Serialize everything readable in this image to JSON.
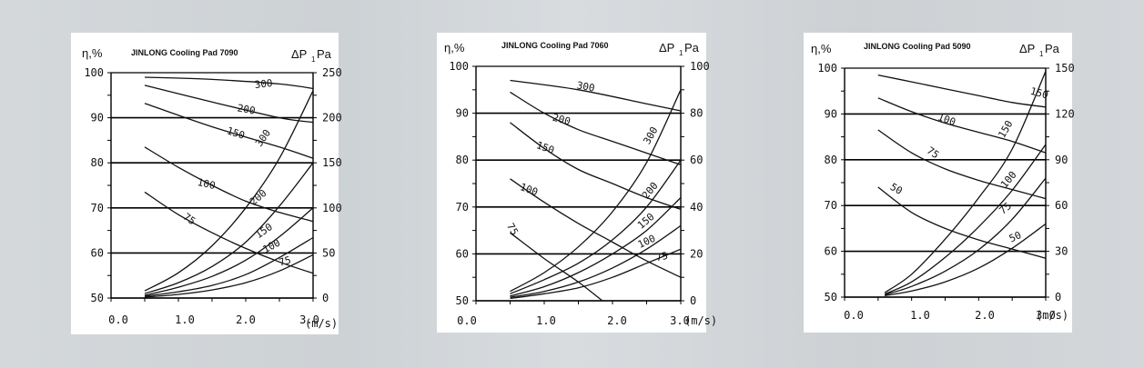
{
  "background_color": "#d2d6d9",
  "charts": [
    {
      "title": "JINLONG  Cooling Pad 7090",
      "left_label": "η,%",
      "right_label": "ΔP",
      "right_label_sub": "1",
      "right_label_unit": "Pa",
      "x_label": "(m/s)",
      "x_ticks": [
        "0.0",
        "1.0",
        "2.0",
        "3.0"
      ],
      "y_left_ticks": [
        "50",
        "60",
        "70",
        "80",
        "90",
        "100"
      ],
      "y_right_ticks": [
        "0",
        "50",
        "100",
        "150",
        "200",
        "250"
      ]
    },
    {
      "title": "JINLONG  Cooling Pad 7060",
      "left_label": "η,%",
      "right_label": "ΔP",
      "right_label_sub": "1",
      "right_label_unit": "Pa",
      "x_label": "(m/s)",
      "x_ticks": [
        "0.0",
        "1.0",
        "2.0",
        "3.0"
      ],
      "y_left_ticks": [
        "50",
        "60",
        "70",
        "80",
        "90",
        "100"
      ],
      "y_right_ticks": [
        "0",
        "20",
        "40",
        "60",
        "80",
        "100"
      ]
    },
    {
      "title": "JINLONG  Cooling Pad 5090",
      "left_label": "η,%",
      "right_label": "ΔP",
      "right_label_sub": "1",
      "right_label_unit": "Pa",
      "x_label": "(m/s)",
      "x_ticks": [
        "0.0",
        "1.0",
        "2.0",
        "3.0"
      ],
      "y_left_ticks": [
        "50",
        "60",
        "70",
        "80",
        "90",
        "100"
      ],
      "y_right_ticks": [
        "0",
        "30",
        "60",
        "90",
        "120",
        "150"
      ]
    }
  ],
  "chart_data": [
    {
      "type": "line",
      "title": "JINLONG  Cooling Pad 7090",
      "xlim": [
        0,
        3
      ],
      "ylim_left": [
        50,
        100
      ],
      "ylim_right": [
        0,
        250
      ],
      "grid": "horizontal",
      "efficiency_series": [
        {
          "name": "300",
          "x": [
            0.5,
            1.5,
            2.5,
            3.0
          ],
          "y": [
            99,
            98.5,
            97.5,
            96.5
          ]
        },
        {
          "name": "200",
          "x": [
            0.5,
            1.5,
            2.5,
            3.0
          ],
          "y": [
            97.2,
            93.5,
            90,
            89
          ]
        },
        {
          "name": "150",
          "x": [
            0.5,
            1.5,
            2.5,
            3.0
          ],
          "y": [
            93.2,
            88,
            83.5,
            81
          ]
        },
        {
          "name": "100",
          "x": [
            0.5,
            1.0,
            1.5,
            2.0,
            2.5,
            3.0
          ],
          "y": [
            83.5,
            79,
            75,
            71.5,
            69,
            67
          ]
        },
        {
          "name": "75",
          "x": [
            0.5,
            1.0,
            1.5,
            2.0,
            2.5,
            3.0
          ],
          "y": [
            73.5,
            68.5,
            64.5,
            61,
            58,
            55.5
          ]
        }
      ],
      "pressure_series": [
        {
          "name": "300",
          "x": [
            0.5,
            1.0,
            1.5,
            2.0,
            2.5,
            3.0
          ],
          "y": [
            8,
            28,
            58,
            100,
            155,
            230
          ]
        },
        {
          "name": "200",
          "x": [
            0.5,
            1.0,
            1.5,
            2.0,
            2.5,
            3.0
          ],
          "y": [
            5,
            17,
            35,
            62,
            102,
            150
          ]
        },
        {
          "name": "150",
          "x": [
            0.5,
            1.0,
            1.5,
            2.0,
            2.5,
            3.0
          ],
          "y": [
            3,
            12,
            24,
            42,
            68,
            100
          ]
        },
        {
          "name": "100",
          "x": [
            0.5,
            1.0,
            1.5,
            2.0,
            2.5,
            3.0
          ],
          "y": [
            2,
            7,
            14,
            26,
            45,
            67
          ]
        },
        {
          "name": "75",
          "x": [
            0.5,
            1.0,
            1.5,
            2.0,
            2.5,
            3.0
          ],
          "y": [
            1,
            4,
            9,
            17,
            30,
            48
          ]
        }
      ]
    },
    {
      "type": "line",
      "title": "JINLONG  Cooling Pad 7060",
      "xlim": [
        0,
        3
      ],
      "ylim_left": [
        50,
        100
      ],
      "ylim_right": [
        0,
        100
      ],
      "grid": "horizontal",
      "efficiency_series": [
        {
          "name": "300",
          "x": [
            0.5,
            1.5,
            2.5,
            3.0
          ],
          "y": [
            97,
            95,
            92,
            90.5
          ]
        },
        {
          "name": "200",
          "x": [
            0.5,
            1.0,
            1.5,
            2.0,
            2.5,
            3.0
          ],
          "y": [
            94.5,
            90,
            86.5,
            84,
            81.5,
            79
          ]
        },
        {
          "name": "150",
          "x": [
            0.5,
            1.0,
            1.5,
            2.0,
            2.5,
            3.0
          ],
          "y": [
            88,
            82.5,
            78,
            75,
            72,
            69.5
          ]
        },
        {
          "name": "100",
          "x": [
            0.5,
            1.0,
            1.5,
            2.0,
            2.5,
            3.0
          ],
          "y": [
            76,
            71,
            66.5,
            62.5,
            58.5,
            55
          ]
        },
        {
          "name": "75",
          "x": [
            0.5,
            1.0,
            1.5,
            1.85
          ],
          "y": [
            64.5,
            59,
            54,
            50
          ]
        }
      ],
      "pressure_series": [
        {
          "name": "300",
          "x": [
            0.5,
            1.0,
            1.5,
            2.0,
            2.5,
            3.0
          ],
          "y": [
            4,
            12,
            23,
            38,
            59,
            90
          ]
        },
        {
          "name": "200",
          "x": [
            0.5,
            1.0,
            1.5,
            2.0,
            2.5,
            3.0
          ],
          "y": [
            3,
            9,
            16,
            26,
            40,
            60
          ]
        },
        {
          "name": "150",
          "x": [
            0.5,
            1.0,
            1.5,
            2.0,
            2.5,
            3.0
          ],
          "y": [
            2,
            6,
            12,
            20,
            30,
            44
          ]
        },
        {
          "name": "100",
          "x": [
            0.5,
            1.0,
            1.5,
            2.0,
            2.5,
            3.0
          ],
          "y": [
            1.5,
            4,
            8,
            14,
            22,
            32
          ]
        },
        {
          "name": "75",
          "x": [
            0.5,
            1.0,
            1.5,
            2.0,
            2.5,
            3.0
          ],
          "y": [
            1,
            3,
            5.5,
            10,
            16,
            22
          ]
        }
      ]
    },
    {
      "type": "line",
      "title": "JINLONG  Cooling Pad 5090",
      "xlim": [
        0,
        3
      ],
      "ylim_left": [
        50,
        100
      ],
      "ylim_right": [
        0,
        150
      ],
      "grid": "horizontal",
      "efficiency_series": [
        {
          "name": "150",
          "x": [
            0.5,
            1.0,
            1.5,
            2.0,
            2.5,
            3.0
          ],
          "y": [
            98.5,
            97,
            95.5,
            94,
            92.5,
            91.5
          ]
        },
        {
          "name": "100",
          "x": [
            0.5,
            1.0,
            1.5,
            2.0,
            2.5,
            3.0
          ],
          "y": [
            93.5,
            90.5,
            88,
            86,
            84,
            81.5
          ]
        },
        {
          "name": "75",
          "x": [
            0.5,
            1.0,
            1.5,
            2.0,
            2.5,
            3.0
          ],
          "y": [
            86.5,
            81.5,
            78,
            75.5,
            73.5,
            71.5
          ]
        },
        {
          "name": "50",
          "x": [
            0.5,
            1.0,
            1.5,
            2.0,
            2.5,
            3.0
          ],
          "y": [
            74,
            68.5,
            65,
            62.5,
            60.5,
            58.5
          ]
        }
      ],
      "pressure_series": [
        {
          "name": "150",
          "x": [
            0.6,
            1.0,
            1.5,
            2.0,
            2.5,
            3.0
          ],
          "y": [
            3,
            15,
            38,
            65,
            97,
            148
          ]
        },
        {
          "name": "100",
          "x": [
            0.6,
            1.0,
            1.5,
            2.0,
            2.5,
            3.0
          ],
          "y": [
            2,
            10,
            26,
            46,
            70,
            100
          ]
        },
        {
          "name": "75",
          "x": [
            0.6,
            1.0,
            1.5,
            2.0,
            2.5,
            3.0
          ],
          "y": [
            1.5,
            7,
            17,
            31,
            51,
            78
          ]
        },
        {
          "name": "50",
          "x": [
            0.6,
            1.0,
            1.5,
            2.0,
            2.5,
            3.0
          ],
          "y": [
            1,
            4,
            10,
            19,
            32,
            48
          ]
        }
      ]
    }
  ]
}
